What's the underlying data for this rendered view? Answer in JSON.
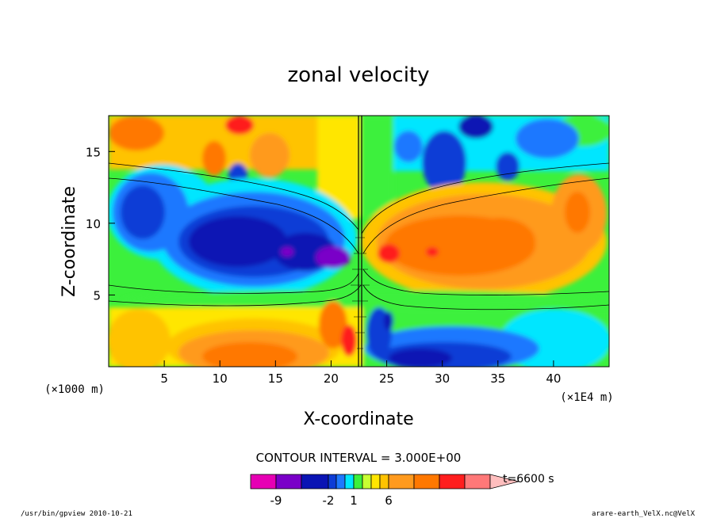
{
  "chart_data": {
    "type": "heatmap",
    "title": "zonal velocity",
    "xlabel": "X-coordinate",
    "ylabel": "Z-coordinate",
    "x_unit_label": "(×1E4 m)",
    "y_unit_label": "(×1000 m)",
    "xlim": [
      0,
      45
    ],
    "ylim": [
      0,
      17.5
    ],
    "x_ticks": [
      "5",
      "10",
      "15",
      "20",
      "25",
      "30",
      "35",
      "40"
    ],
    "y_ticks": [
      "5",
      "10",
      "15"
    ],
    "x_tick_values": [
      5,
      10,
      15,
      20,
      25,
      30,
      35,
      40
    ],
    "y_tick_values": [
      5,
      10,
      15
    ],
    "contour_interval": "CONTOUR INTERVAL = 3.000E+00",
    "time_label": "t=6600 s",
    "colorbar_tick_labels": [
      "-9",
      "-2",
      "1",
      "6"
    ],
    "colorbar_colors": [
      "#e600b4",
      "#7a00c8",
      "#0a14b4",
      "#0d3cd6",
      "#1e78ff",
      "#00e6ff",
      "#3cf03c",
      "#c8ff32",
      "#ffe600",
      "#ffc300",
      "#ff9a1e",
      "#ff7800",
      "#ff1e1e",
      "#ff7878",
      "#ffbebe"
    ],
    "features": [
      {
        "name": "easterly jet (blue)",
        "x_range": [
          1,
          22
        ],
        "z_range": [
          6,
          12
        ],
        "value_approx": -8
      },
      {
        "name": "westerly jet (orange)",
        "x_range": [
          24,
          45
        ],
        "z_range": [
          6,
          12
        ],
        "value_approx": 5
      },
      {
        "name": "low-level westerly (orange)",
        "x_range": [
          7,
          22
        ],
        "z_range": [
          0,
          3
        ],
        "value_approx": 4
      },
      {
        "name": "low-level easterly (blue)",
        "x_range": [
          24,
          37
        ],
        "z_range": [
          0,
          2
        ],
        "value_approx": -6
      },
      {
        "name": "strongest negative core (purple)",
        "x": 21,
        "z": 8,
        "value_approx": -10
      }
    ]
  },
  "footer": {
    "left": "/usr/bin/gpview   2010-10-21",
    "right": "arare-earth_VelX.nc@VelX"
  }
}
